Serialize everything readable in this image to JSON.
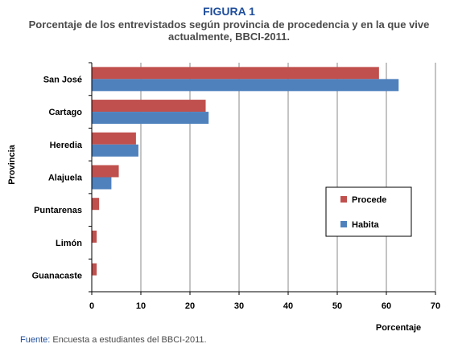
{
  "figure_label": "FIGURA 1",
  "source": {
    "label": "Fuente:",
    "text": " Encuesta a estudiantes del BBCI-2011."
  },
  "colors": {
    "procede": "#c0504d",
    "habita": "#4f81bd",
    "grid": "#888888",
    "title_blue": "#1f4e9c"
  },
  "chart_data": {
    "type": "bar",
    "orientation": "horizontal",
    "title": "Porcentaje de los entrevistados según provincia de procedencia y en la que vive actualmente, BBCI-2011.",
    "xlabel": "Porcentaje",
    "ylabel": "Provincia",
    "xlim": [
      0,
      70
    ],
    "xticks": [
      0,
      10,
      20,
      30,
      40,
      50,
      60,
      70
    ],
    "grid": true,
    "legend_position": "right",
    "categories": [
      "San José",
      "Cartago",
      "Heredia",
      "Alajuela",
      "Puntarenas",
      "Limón",
      "Guanacaste"
    ],
    "series": [
      {
        "name": "Procede",
        "values": [
          58.5,
          23.2,
          9.0,
          5.5,
          1.5,
          1.0,
          1.0
        ]
      },
      {
        "name": "Habita",
        "values": [
          62.5,
          23.8,
          9.5,
          4.0,
          0,
          0,
          0
        ]
      }
    ]
  }
}
